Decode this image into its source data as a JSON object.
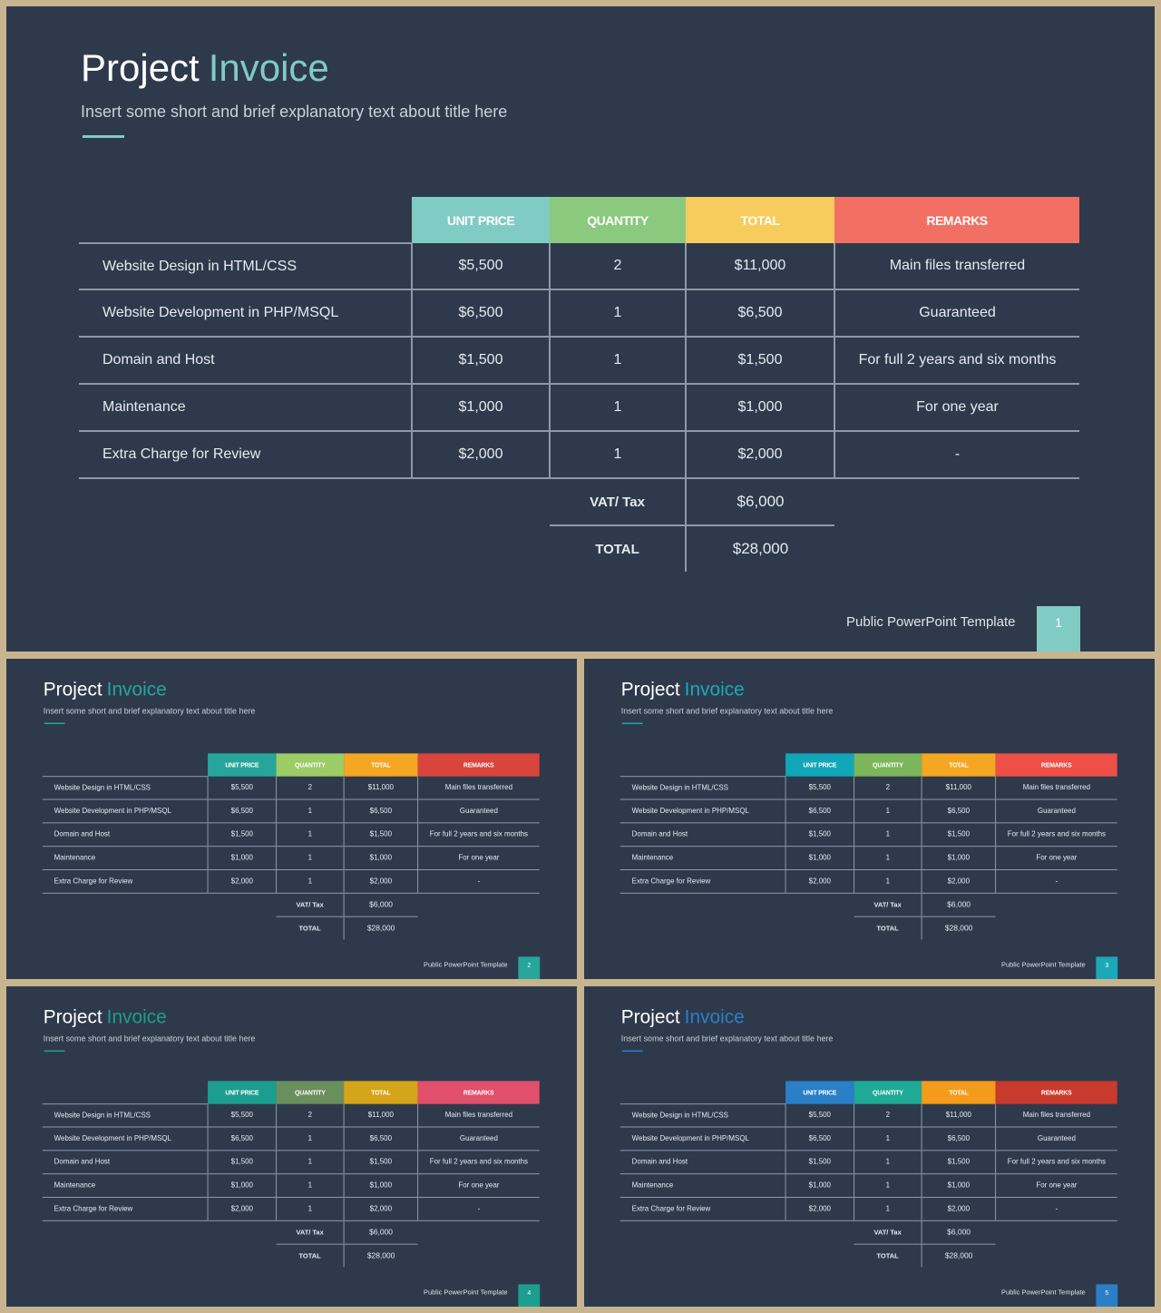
{
  "title_main": "Project",
  "title_accent": "Invoice",
  "subtitle": "Insert some short and brief explanatory text about title here",
  "footer_text": "Public PowerPoint Template",
  "headers": [
    "UNIT PRICE",
    "QUANTITY",
    "TOTAL",
    "REMARKS"
  ],
  "rows": [
    {
      "item": "Website  Design  in HTML/CSS",
      "price": "$5,500",
      "qty": "2",
      "total": "$11,000",
      "remarks": "Main files transferred"
    },
    {
      "item": "Website  Development  in PHP/MSQL",
      "price": "$6,500",
      "qty": "1",
      "total": "$6,500",
      "remarks": "Guaranteed"
    },
    {
      "item": "Domain  and Host",
      "price": "$1,500",
      "qty": "1",
      "total": "$1,500",
      "remarks": "For full 2 years and six months"
    },
    {
      "item": "Maintenance",
      "price": "$1,000",
      "qty": "1",
      "total": "$1,000",
      "remarks": "For one year"
    },
    {
      "item": "Extra  Charge  for Review",
      "price": "$2,000",
      "qty": "1",
      "total": "$2,000",
      "remarks": "-"
    }
  ],
  "vat_label": "VAT/ Tax",
  "vat_value": "$6,000",
  "total_label": "TOTAL",
  "total_value": "$28,000",
  "slides": [
    {
      "page": "1",
      "accent": "#80cbc4",
      "header_colors": [
        "#80cbc4",
        "#8bc97e",
        "#f8cc5c",
        "#f26f63"
      ],
      "page_color": "#80cbc4"
    },
    {
      "page": "2",
      "accent": "#26a69a",
      "header_colors": [
        "#26a69a",
        "#9ccc65",
        "#f5a623",
        "#d9453d"
      ],
      "page_color": "#26a69a"
    },
    {
      "page": "3",
      "accent": "#1ba8b8",
      "header_colors": [
        "#11a6b8",
        "#7cb65a",
        "#f5a623",
        "#ee4f47"
      ],
      "page_color": "#1ba8b8"
    },
    {
      "page": "4",
      "accent": "#1c9e8e",
      "header_colors": [
        "#1c9e8e",
        "#6b8e5e",
        "#d4a419",
        "#e0506a"
      ],
      "page_color": "#1c9e8e"
    },
    {
      "page": "5",
      "accent": "#2a7fc7",
      "header_colors": [
        "#2a7fc7",
        "#1faa96",
        "#f59b1b",
        "#c8392e"
      ],
      "page_color": "#2a7fc7"
    }
  ]
}
